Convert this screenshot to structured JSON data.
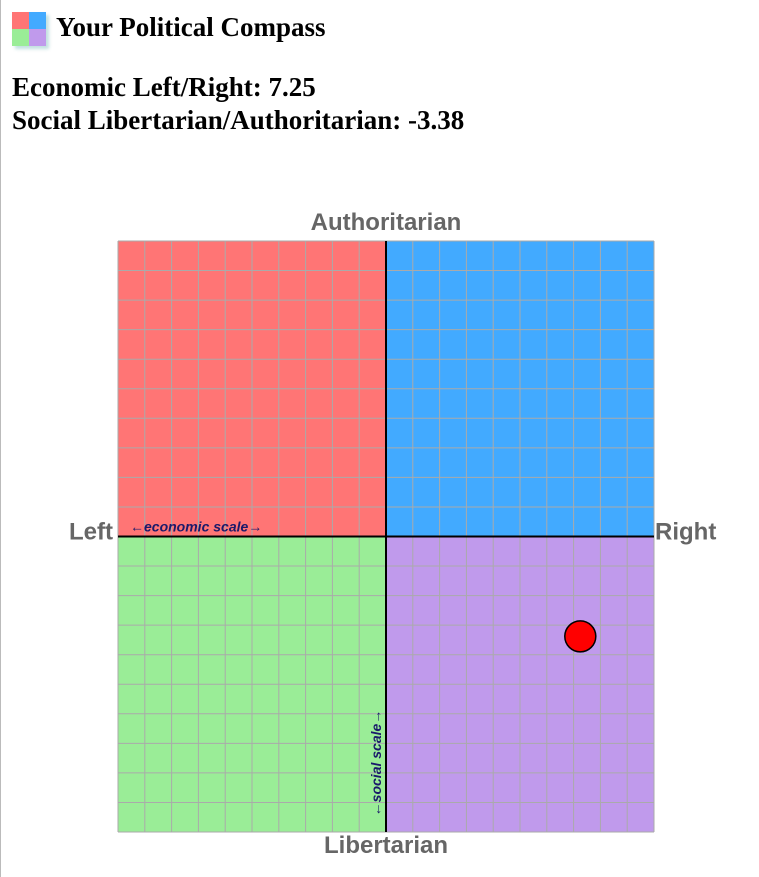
{
  "header": {
    "title": "Your Political Compass"
  },
  "scores": [
    "Economic Left/Right:",
    "Social Libertarian/Authoritarian:"
  ],
  "chart_data": {
    "type": "scatter",
    "x": [
      7.25
    ],
    "values": [
      -3.38
    ],
    "color": "#ff0000",
    "xlim": [
      -10,
      10
    ],
    "ylim": [
      -10,
      10
    ],
    "xticks": [
      -10,
      -9,
      -8,
      -7,
      -6,
      -5,
      -4,
      -3,
      -2,
      -1,
      0,
      1,
      2,
      3,
      4,
      5,
      6,
      7,
      8,
      9,
      10
    ],
    "yticks": [
      -10,
      -9,
      -8,
      -7,
      -6,
      -5,
      -4,
      -3,
      -2,
      -1,
      0,
      1,
      2,
      3,
      4,
      5,
      6,
      7,
      8,
      9,
      10
    ],
    "grid": true,
    "quadrant_colors": [
      "#ff7575",
      "#42aaff",
      "#9aed97",
      "#c09aec"
    ],
    "top_label": "Authoritarian",
    "bottom_label": "Libertarian",
    "left_label": "Left",
    "right_label": "Right",
    "x_scale_label": "←economic scale→",
    "y_scale_label": "←social scale→"
  }
}
